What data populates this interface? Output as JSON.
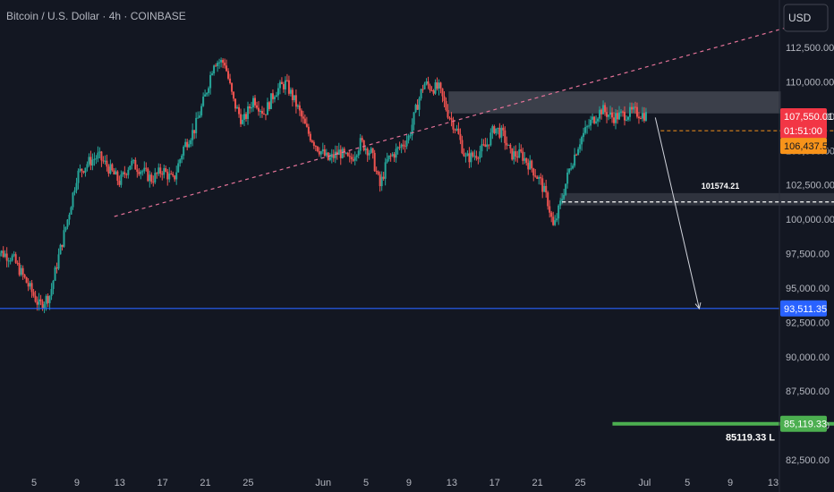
{
  "header": {
    "symbol_title": "Bitcoin / U.S. Dollar · 4h · COINBASE",
    "currency_button": "USD"
  },
  "colors": {
    "background": "#131722",
    "bull": "#26a69a",
    "bear": "#ef5350",
    "axis_text": "#b2b5be",
    "support_line": "#2962ff",
    "target_line": "#4caf50",
    "trendline": "#e57399",
    "orange": "#f7931a"
  },
  "chart_data": {
    "type": "candlestick",
    "title": "Bitcoin / U.S. Dollar · 4h · COINBASE",
    "y_axis": {
      "range": [
        82500,
        114700
      ],
      "tick_labels": [
        "112,500.00",
        "110,000.00",
        "107,500.00",
        "105,000.00",
        "102,500.00",
        "100,000.00",
        "97,500.00",
        "95,000.00",
        "92,500.00",
        "90,000.00",
        "87,500.00",
        "85,000.00",
        "82,500.00"
      ],
      "tick_values": [
        112500,
        110000,
        107500,
        105000,
        102500,
        100000,
        97500,
        95000,
        92500,
        90000,
        87500,
        85000,
        82500
      ]
    },
    "x_axis": {
      "tick_labels": [
        "5",
        "9",
        "13",
        "17",
        "21",
        "25",
        "Jun",
        "5",
        "9",
        "13",
        "17",
        "21",
        "25",
        "Jul",
        "5",
        "9",
        "13"
      ],
      "tick_days": [
        5,
        9,
        13,
        17,
        21,
        25,
        32,
        36,
        40,
        44,
        48,
        52,
        56,
        62,
        66,
        70,
        74
      ],
      "day_range": [
        1.2,
        75.8
      ]
    },
    "swing_path": [
      [
        1.3,
        97800
      ],
      [
        3,
        97200
      ],
      [
        4.6,
        95000
      ],
      [
        5.5,
        93700
      ],
      [
        6.5,
        94500
      ],
      [
        7.3,
        97300
      ],
      [
        8.2,
        100200
      ],
      [
        9,
        103200
      ],
      [
        10,
        104100
      ],
      [
        11,
        104600
      ],
      [
        12,
        103700
      ],
      [
        13,
        102700
      ],
      [
        14,
        104100
      ],
      [
        15,
        103600
      ],
      [
        16,
        102900
      ],
      [
        17,
        103600
      ],
      [
        18,
        102800
      ],
      [
        19,
        105300
      ],
      [
        20,
        106600
      ],
      [
        21,
        109000
      ],
      [
        21.8,
        111500
      ],
      [
        22.8,
        111400
      ],
      [
        23.6,
        108600
      ],
      [
        24.5,
        107000
      ],
      [
        25.5,
        108800
      ],
      [
        26.5,
        107700
      ],
      [
        27.5,
        109300
      ],
      [
        28.5,
        109900
      ],
      [
        29.5,
        108300
      ],
      [
        30.5,
        106400
      ],
      [
        31.5,
        105200
      ],
      [
        32.5,
        104300
      ],
      [
        33.5,
        104900
      ],
      [
        34.5,
        104200
      ],
      [
        35.5,
        105600
      ],
      [
        36.5,
        104800
      ],
      [
        37.3,
        102400
      ],
      [
        38,
        104300
      ],
      [
        39,
        105100
      ],
      [
        40,
        106000
      ],
      [
        40.8,
        108400
      ],
      [
        41.4,
        109900
      ],
      [
        42,
        109600
      ],
      [
        42.8,
        109500
      ],
      [
        43.6,
        107800
      ],
      [
        44.5,
        106400
      ],
      [
        45.3,
        104400
      ],
      [
        46.2,
        104700
      ],
      [
        47.2,
        105300
      ],
      [
        48,
        106700
      ],
      [
        48.8,
        106100
      ],
      [
        49.5,
        104700
      ],
      [
        50.5,
        104700
      ],
      [
        51.5,
        103700
      ],
      [
        52.3,
        102700
      ],
      [
        53,
        101200
      ],
      [
        53.5,
        99300
      ],
      [
        54.2,
        101300
      ],
      [
        55,
        103700
      ],
      [
        56,
        105800
      ],
      [
        57,
        107100
      ],
      [
        58,
        108000
      ],
      [
        59,
        107400
      ],
      [
        60,
        107600
      ],
      [
        61,
        107800
      ],
      [
        62.2,
        107550
      ]
    ],
    "annotations": {
      "rising_trendline": {
        "from": [
          12.5,
          100200
        ],
        "to": [
          75.5,
          114000
        ],
        "style": "dashed"
      },
      "resistance_zone": {
        "day_range": [
          43.7,
          74.7
        ],
        "price_range": [
          107700,
          109300
        ]
      },
      "level_box": {
        "day_range": [
          54.1,
          81.9
        ],
        "price_range": [
          101000,
          101900
        ],
        "label": "101574.21"
      },
      "dashed_level": {
        "price": 101260,
        "day_range": [
          54.3,
          81.9
        ]
      },
      "current_level": {
        "price": 106437.52,
        "day_range": [
          63.5,
          81.5
        ]
      },
      "projection_arrow": {
        "from": [
          63.0,
          107400
        ],
        "to": [
          67.1,
          93500
        ]
      },
      "support_line": {
        "price": 93511.35
      },
      "target_line": {
        "price": 85119.33,
        "day_range": [
          59,
          81.9
        ]
      },
      "clock_marker": {
        "day": 81.0,
        "price": 106437.52
      }
    },
    "price_labels": {
      "last_price": "107,550.01",
      "countdown": "01:51:00",
      "orange_level": "106,437.52",
      "support": "93,511.35",
      "target": "85,119.33",
      "target_caption": "85119.33  L"
    }
  }
}
